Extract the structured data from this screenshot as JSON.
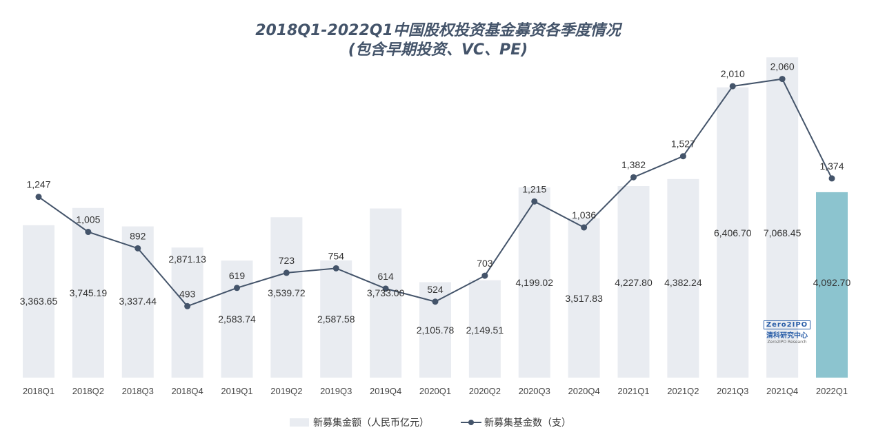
{
  "chart_data": {
    "type": "bar+line",
    "title": "2018Q1-2022Q1中国股权投资基金募资各季度情况",
    "subtitle": "(包含早期投资、VC、PE)",
    "categories": [
      "2018Q1",
      "2018Q2",
      "2018Q3",
      "2018Q4",
      "2019Q1",
      "2019Q2",
      "2019Q3",
      "2019Q4",
      "2020Q1",
      "2020Q2",
      "2020Q3",
      "2020Q4",
      "2021Q1",
      "2021Q2",
      "2021Q3",
      "2021Q4",
      "2022Q1"
    ],
    "series": [
      {
        "name": "新募集金额（人民币亿元）",
        "type": "bar",
        "values": [
          3363.65,
          3745.19,
          3337.44,
          2871.13,
          2583.74,
          3539.72,
          2587.58,
          3733.0,
          2105.78,
          2149.51,
          4199.02,
          3517.83,
          4227.8,
          4382.24,
          6406.7,
          7068.45,
          4092.7
        ],
        "labels": [
          "3,363.65",
          "3,745.19",
          "3,337.44",
          "2,871.13",
          "2,583.74",
          "3,539.72",
          "2,587.58",
          "3,733.00",
          "2,105.78",
          "2,149.51",
          "4,199.02",
          "3,517.83",
          "4,227.80",
          "4,382.24",
          "6,406.70",
          "7,068.45",
          "4,092.70"
        ]
      },
      {
        "name": "新募集基金数（支）",
        "type": "line",
        "values": [
          1247,
          1005,
          892,
          493,
          619,
          723,
          754,
          614,
          524,
          703,
          1215,
          1036,
          1382,
          1527,
          2010,
          2060,
          1374
        ],
        "labels": [
          "1,247",
          "1,005",
          "892",
          "493",
          "619",
          "723",
          "754",
          "614",
          "524",
          "703",
          "1,215",
          "1,036",
          "1,382",
          "1,527",
          "2,010",
          "2,060",
          "1,374"
        ]
      }
    ],
    "bar_axis_range": [
      0,
      8000
    ],
    "line_axis_range": [
      0,
      2500
    ],
    "grid": false,
    "legend_position": "bottom",
    "colors": {
      "bar": "#e9ecf1",
      "bar_highlight": "#8cc4cf",
      "line": "#44546a",
      "title": "#44546a"
    }
  },
  "logo": {
    "text": "Zero2IPO",
    "cn": "清科研究中心",
    "en": "Zero2IPO Research"
  }
}
